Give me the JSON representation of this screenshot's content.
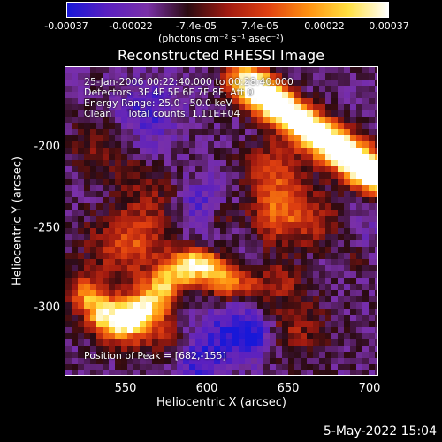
{
  "colorbar": {
    "ticks": [
      "-0.00037",
      "-0.00022",
      "-7.4e-05",
      "7.4e-05",
      "0.00022",
      "0.00037"
    ],
    "units": "(photons cm⁻² s⁻¹ asec⁻²)",
    "colors": [
      "#1818d8",
      "#5a20c0",
      "#7a30a8",
      "#2a0a10",
      "#a01a10",
      "#e04010",
      "#ff9010",
      "#ffe040",
      "#ffffff"
    ]
  },
  "title": "Reconstructed RHESSI Image",
  "annotations": {
    "line1": "25-Jan-2006 00:22:40.000 to 00:28:40.000",
    "line2": "Detectors: 3F 4F 5F 6F 7F 8F, Att 0",
    "line3": "Energy Range: 25.0 - 50.0 keV",
    "line4": "Clean     Total counts: 1.11E+04",
    "peak": "Position of Peak = [682,-155]"
  },
  "axes": {
    "xlabel": "Heliocentric X (arcsec)",
    "ylabel": "Heliocentric Y (arcsec)",
    "xticks": [
      "550",
      "600",
      "650",
      "700"
    ],
    "yticks": [
      "-200",
      "-250",
      "-300"
    ],
    "xlim": [
      513,
      705
    ],
    "ylim": [
      -343,
      -155
    ]
  },
  "footer": {
    "timestamp": "5-May-2022 15:04"
  }
}
